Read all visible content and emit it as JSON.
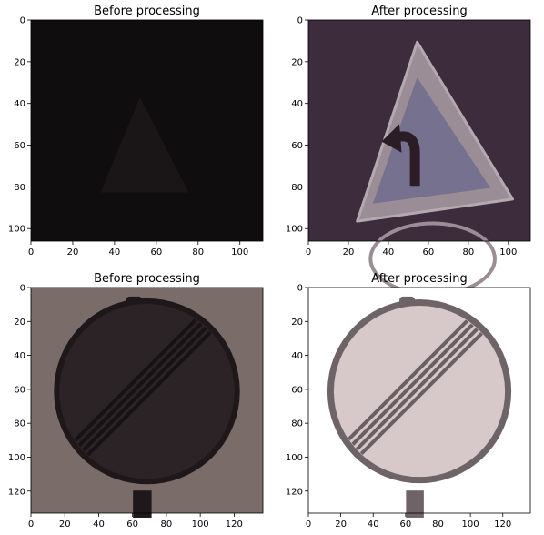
{
  "chart_data": [
    {
      "type": "image",
      "title": "Before processing",
      "image_content": "dark, near-black photo of a triangular warning sign (curve-to-the-left) barely visible",
      "colors": {
        "background": "#0f0d0e",
        "faint_sign": "#1c1719"
      },
      "x_ticks": [
        0,
        20,
        40,
        60,
        80,
        100
      ],
      "y_ticks": [
        0,
        20,
        40,
        60,
        80,
        100
      ],
      "xlim": [
        0,
        111
      ],
      "ylim": [
        106,
        0
      ],
      "icon": "triangle-warning-sign-icon"
    },
    {
      "type": "image",
      "title": "After processing",
      "image_content": "contrast-enhanced triangular warning sign with a curve-to-the-left arrow",
      "colors": {
        "background": "#3d2c3c",
        "sign_border": "#9a8d96",
        "sign_fill": "#76718f",
        "arrow": "#2a1d26"
      },
      "x_ticks": [
        0,
        20,
        40,
        60,
        80,
        100
      ],
      "y_ticks": [
        0,
        20,
        40,
        60,
        80,
        100
      ],
      "xlim": [
        0,
        111
      ],
      "ylim": [
        106,
        0
      ],
      "icon": "triangle-warning-sign-icon"
    },
    {
      "type": "image",
      "title": "Before processing",
      "image_content": "dim photo of a circular end-of-all-restrictions sign with diagonal stripes",
      "colors": {
        "background": "#7a6c68",
        "sign_fill": "#2b2325",
        "sign_ring": "#1e181a",
        "stripes": "#171214"
      },
      "x_ticks": [
        0,
        20,
        40,
        60,
        80,
        100,
        120
      ],
      "y_ticks": [
        0,
        20,
        40,
        60,
        80,
        100,
        120
      ],
      "xlim": [
        0,
        137
      ],
      "ylim": [
        133,
        0
      ],
      "icon": "end-of-restrictions-sign-icon"
    },
    {
      "type": "image",
      "title": "After processing",
      "image_content": "contrast-enhanced circular end-of-all-restrictions sign with diagonal stripes",
      "colors": {
        "background": "#ffffff",
        "sign_fill": "#d7c8c9",
        "sign_ring": "#6e6468",
        "stripes": "#6a6063"
      },
      "x_ticks": [
        0,
        20,
        40,
        60,
        80,
        100,
        120
      ],
      "y_ticks": [
        0,
        20,
        40,
        60,
        80,
        100,
        120
      ],
      "xlim": [
        0,
        137
      ],
      "ylim": [
        133,
        0
      ],
      "icon": "end-of-restrictions-sign-icon"
    }
  ]
}
